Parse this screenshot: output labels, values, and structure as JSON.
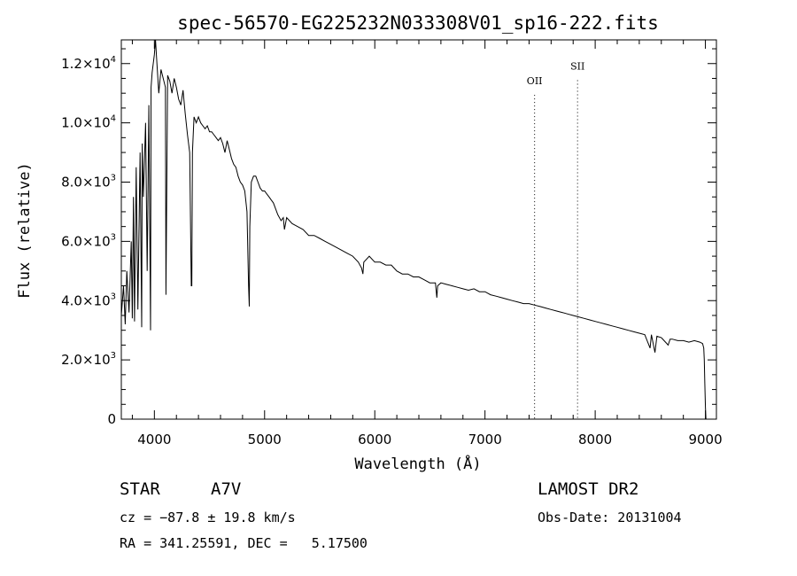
{
  "chart_data": {
    "type": "line",
    "title": "spec-56570-EG225232N033308V01_sp16-222.fits",
    "xlabel": "Wavelength (Å)",
    "ylabel": "Flux (relative)",
    "xlim": [
      3700,
      9100
    ],
    "ylim": [
      0,
      12800
    ],
    "x_ticks": [
      4000,
      5000,
      6000,
      7000,
      8000,
      9000
    ],
    "x_tick_labels": [
      "4000",
      "5000",
      "6000",
      "7000",
      "8000",
      "9000"
    ],
    "y_ticks": [
      {
        "value": 0,
        "mant": "0",
        "exp": ""
      },
      {
        "value": 2000,
        "mant": "2.0×10",
        "exp": "3"
      },
      {
        "value": 4000,
        "mant": "4.0×10",
        "exp": "3"
      },
      {
        "value": 6000,
        "mant": "6.0×10",
        "exp": "3"
      },
      {
        "value": 8000,
        "mant": "8.0×10",
        "exp": "3"
      },
      {
        "value": 10000,
        "mant": "1.0×10",
        "exp": "4"
      },
      {
        "value": 12000,
        "mant": "1.2×10",
        "exp": "4"
      }
    ],
    "grid": false,
    "annotations": [
      {
        "label": "OII",
        "x": 7450,
        "y": 11300
      },
      {
        "label": "SII",
        "x": 7840,
        "y": 11800
      }
    ],
    "series": [
      {
        "x": [
          3700,
          3720,
          3735,
          3750,
          3770,
          3790,
          3800,
          3810,
          3820,
          3835,
          3850,
          3870,
          3885,
          3890,
          3900,
          3920,
          3935,
          3950,
          3965,
          3970,
          3980,
          4000,
          4010,
          4020,
          4040,
          4060,
          4080,
          4100,
          4105,
          4120,
          4140,
          4160,
          4180,
          4200,
          4220,
          4240,
          4260,
          4280,
          4300,
          4320,
          4335,
          4340,
          4345,
          4360,
          4380,
          4400,
          4420,
          4440,
          4460,
          4480,
          4500,
          4520,
          4540,
          4560,
          4580,
          4600,
          4620,
          4640,
          4660,
          4680,
          4700,
          4720,
          4740,
          4760,
          4780,
          4800,
          4820,
          4840,
          4855,
          4861,
          4866,
          4880,
          4900,
          4920,
          4940,
          4960,
          4980,
          5000,
          5020,
          5040,
          5060,
          5080,
          5100,
          5120,
          5150,
          5170,
          5180,
          5200,
          5250,
          5300,
          5350,
          5400,
          5450,
          5500,
          5550,
          5600,
          5650,
          5700,
          5750,
          5800,
          5850,
          5880,
          5892,
          5900,
          5950,
          6000,
          6050,
          6100,
          6150,
          6200,
          6250,
          6300,
          6350,
          6400,
          6450,
          6500,
          6550,
          6563,
          6570,
          6600,
          6650,
          6700,
          6750,
          6800,
          6850,
          6900,
          6950,
          7000,
          7050,
          7100,
          7150,
          7200,
          7250,
          7300,
          7350,
          7400,
          7450,
          7500,
          7550,
          7600,
          7650,
          7700,
          7750,
          7800,
          7850,
          7900,
          7950,
          8000,
          8050,
          8100,
          8150,
          8200,
          8250,
          8300,
          8350,
          8400,
          8450,
          8498,
          8510,
          8542,
          8560,
          8600,
          8662,
          8680,
          8700,
          8750,
          8800,
          8850,
          8900,
          8950,
          8975,
          8985,
          8990,
          8995,
          9000,
          9005
        ],
        "y": [
          3500,
          4500,
          3200,
          5000,
          3600,
          6000,
          3400,
          7500,
          3300,
          8500,
          3700,
          9000,
          3100,
          9300,
          7500,
          10000,
          5000,
          10600,
          3000,
          11200,
          11700,
          12300,
          12800,
          12200,
          11000,
          11800,
          11500,
          11200,
          4200,
          11600,
          11400,
          11000,
          11500,
          11200,
          10800,
          10600,
          11100,
          10300,
          9600,
          9000,
          4500,
          4500,
          9000,
          10200,
          10000,
          10200,
          10000,
          9900,
          9800,
          9900,
          9700,
          9700,
          9600,
          9500,
          9400,
          9500,
          9300,
          9000,
          9400,
          9100,
          8800,
          8600,
          8500,
          8200,
          8000,
          7900,
          7700,
          7000,
          4500,
          3800,
          6500,
          8000,
          8200,
          8200,
          8000,
          7800,
          7700,
          7700,
          7600,
          7500,
          7400,
          7300,
          7100,
          6900,
          6700,
          6800,
          6400,
          6800,
          6600,
          6500,
          6400,
          6200,
          6200,
          6100,
          6000,
          5900,
          5800,
          5700,
          5600,
          5500,
          5300,
          5100,
          4900,
          5300,
          5500,
          5300,
          5300,
          5200,
          5200,
          5000,
          4900,
          4900,
          4800,
          4800,
          4700,
          4600,
          4600,
          4100,
          4500,
          4600,
          4550,
          4500,
          4450,
          4400,
          4350,
          4400,
          4300,
          4300,
          4200,
          4150,
          4100,
          4050,
          4000,
          3950,
          3900,
          3900,
          3850,
          3800,
          3750,
          3700,
          3650,
          3600,
          3550,
          3500,
          3450,
          3400,
          3350,
          3300,
          3250,
          3200,
          3150,
          3100,
          3050,
          3000,
          2950,
          2900,
          2850,
          2400,
          2850,
          2250,
          2800,
          2750,
          2500,
          2700,
          2700,
          2650,
          2650,
          2600,
          2650,
          2600,
          2550,
          2400,
          2000,
          1200,
          400,
          0
        ]
      }
    ]
  },
  "footer": {
    "object_class": "STAR",
    "subclass": "A7V",
    "survey": "LAMOST DR2",
    "cz": "cz = −87.8 ± 19.8 km/s",
    "obs_date": "Obs-Date: 20131004",
    "radec": "RA = 341.25591, DEC =   5.17500"
  }
}
